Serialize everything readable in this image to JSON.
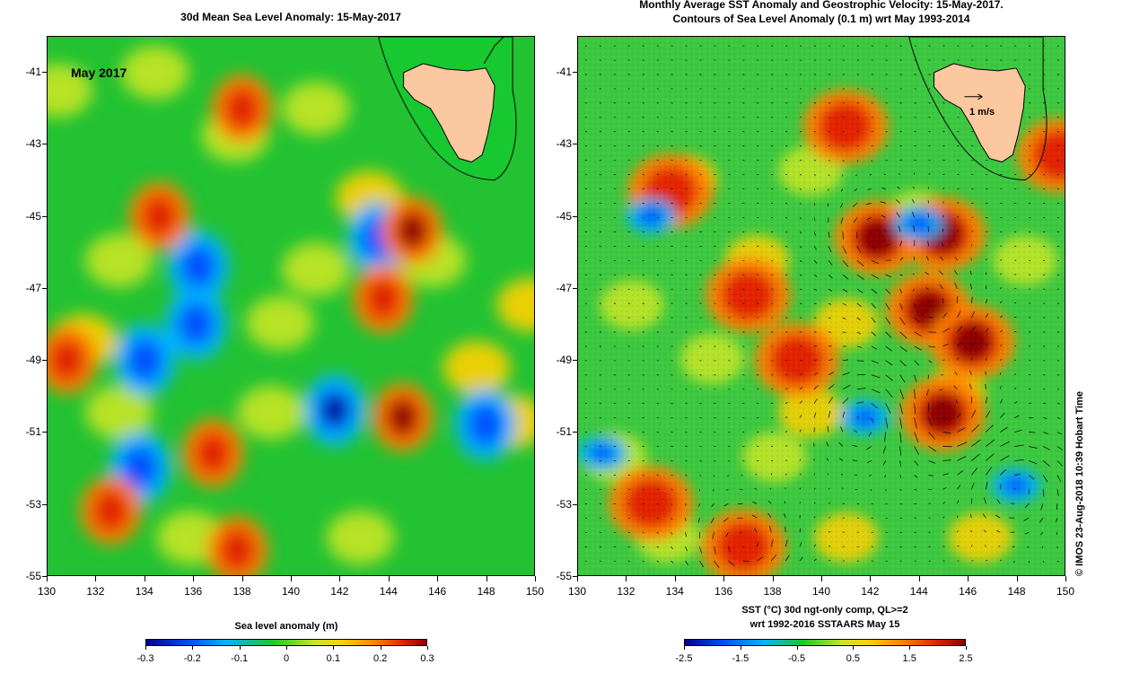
{
  "left_panel": {
    "title": "30d Mean Sea Level Anomaly: 15-May-2017",
    "inset_label": "May 2017",
    "colorbar_title": "Sea level anomaly (m)",
    "colorbar_ticks": [
      "-0.3",
      "-0.2",
      "-0.1",
      "0",
      "0.1",
      "0.2",
      "0.3"
    ]
  },
  "right_panel": {
    "title_line1": "Monthly Average SST Anomaly  and Geostrophic Velocity: 15-May-2017.",
    "title_line2": "Contours of Sea Level Anomaly (0.1 m) wrt May 1993-2014",
    "vector_scale_label": "1 m/s",
    "colorbar_title_line1": "SST (°C) 30d ngt-only comp, QL>=2",
    "colorbar_title_line2": "wrt 1992-2016 SSTAARS May 15",
    "colorbar_ticks": [
      "-2.5",
      "-1.5",
      "-0.5",
      "0.5",
      "1.5",
      "2.5"
    ],
    "credit": "© IMOS 23-Aug-2018 10:39 Hobart Time"
  },
  "axes": {
    "y_ticks": [
      "-41",
      "-43",
      "-45",
      "-47",
      "-49",
      "-51",
      "-53",
      "-55"
    ],
    "x_ticks": [
      "130",
      "132",
      "134",
      "136",
      "138",
      "140",
      "142",
      "144",
      "146",
      "148",
      "150"
    ]
  },
  "colors": {
    "land": "#fbc8a0",
    "ocean_base": "#22c233",
    "scale": [
      "#00008c",
      "#0050ff",
      "#00b4ff",
      "#18c830",
      "#c8e626",
      "#ffd000",
      "#ff8000",
      "#e02000",
      "#8c0000"
    ]
  },
  "left_features": [
    {
      "type": "low",
      "lon": 141.8,
      "lat": -50.4
    },
    {
      "type": "low",
      "lon": 136.2,
      "lat": -46.4
    },
    {
      "type": "low",
      "lon": 136.1,
      "lat": -48.0
    },
    {
      "type": "low",
      "lon": 148.0,
      "lat": -50.8
    },
    {
      "type": "low",
      "lon": 134.0,
      "lat": -49.0
    },
    {
      "type": "low",
      "lon": 133.8,
      "lat": -52.0
    },
    {
      "type": "low",
      "lon": 143.6,
      "lat": -45.6
    },
    {
      "type": "high",
      "lon": 144.6,
      "lat": -50.6
    },
    {
      "type": "high",
      "lon": 145.0,
      "lat": -45.4
    },
    {
      "type": "high",
      "lon": 138.0,
      "lat": -42.0
    },
    {
      "type": "high",
      "lon": 132.6,
      "lat": -53.2
    },
    {
      "type": "high",
      "lon": 137.8,
      "lat": -54.3
    },
    {
      "type": "high",
      "lon": 136.8,
      "lat": -51.6
    },
    {
      "type": "high",
      "lon": 143.8,
      "lat": -47.3
    },
    {
      "type": "high",
      "lon": 130.8,
      "lat": -49.0
    },
    {
      "type": "high",
      "lon": 134.6,
      "lat": -45.0
    }
  ],
  "right_features": [
    {
      "type": "warm",
      "lon": 145.0,
      "lat": -50.5
    },
    {
      "type": "warm",
      "lon": 142.3,
      "lat": -45.6
    },
    {
      "type": "warm",
      "lon": 144.4,
      "lat": -47.6
    },
    {
      "type": "warm",
      "lon": 146.2,
      "lat": -48.5
    },
    {
      "type": "warm",
      "lon": 145.0,
      "lat": -45.5
    },
    {
      "type": "warm",
      "lon": 149.8,
      "lat": -43.3
    },
    {
      "type": "warm",
      "lon": 133.8,
      "lat": -44.3
    },
    {
      "type": "warm",
      "lon": 139.0,
      "lat": -49.0
    },
    {
      "type": "warm",
      "lon": 137.0,
      "lat": -47.2
    },
    {
      "type": "warm",
      "lon": 136.8,
      "lat": -54.2
    },
    {
      "type": "warm",
      "lon": 133.0,
      "lat": -53.0
    },
    {
      "type": "warm",
      "lon": 141.0,
      "lat": -42.5
    },
    {
      "type": "cold",
      "lon": 141.8,
      "lat": -50.6
    },
    {
      "type": "cold",
      "lon": 144.0,
      "lat": -45.2
    },
    {
      "type": "cold",
      "lon": 133.0,
      "lat": -45.0
    },
    {
      "type": "cold",
      "lon": 148.0,
      "lat": -52.5
    },
    {
      "type": "cold",
      "lon": 131.0,
      "lat": -51.6
    }
  ]
}
